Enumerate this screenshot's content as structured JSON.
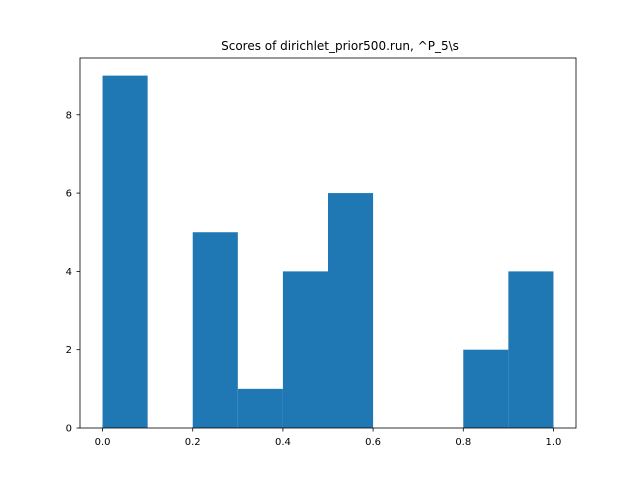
{
  "chart_data": {
    "type": "bar",
    "title": "Scores of dirichlet_prior500.run, ^P_5\\s",
    "xlabel": "",
    "ylabel": "",
    "bins": [
      {
        "start": 0.0,
        "end": 0.1,
        "count": 9
      },
      {
        "start": 0.1,
        "end": 0.2,
        "count": 0
      },
      {
        "start": 0.2,
        "end": 0.3,
        "count": 5
      },
      {
        "start": 0.3,
        "end": 0.4,
        "count": 1
      },
      {
        "start": 0.4,
        "end": 0.5,
        "count": 4
      },
      {
        "start": 0.5,
        "end": 0.6,
        "count": 6
      },
      {
        "start": 0.6,
        "end": 0.7,
        "count": 0
      },
      {
        "start": 0.7,
        "end": 0.8,
        "count": 0
      },
      {
        "start": 0.8,
        "end": 0.9,
        "count": 2
      },
      {
        "start": 0.9,
        "end": 1.0,
        "count": 4
      }
    ],
    "xlim": [
      -0.05,
      1.05
    ],
    "ylim": [
      0,
      9.45
    ],
    "xticks": [
      "0.0",
      "0.2",
      "0.4",
      "0.6",
      "0.8",
      "1.0"
    ],
    "yticks": [
      "0",
      "2",
      "4",
      "6",
      "8"
    ],
    "bar_color": "#1f77b4",
    "grid": false,
    "legend": "none"
  }
}
